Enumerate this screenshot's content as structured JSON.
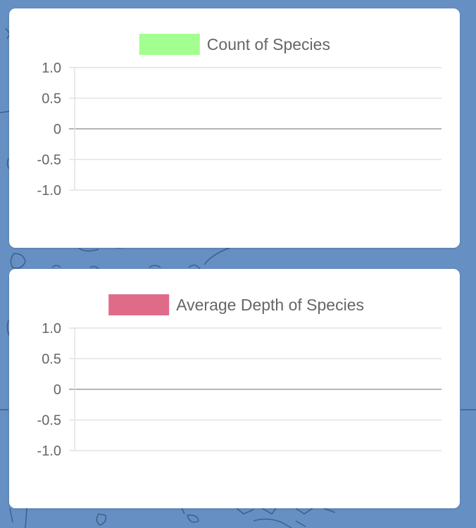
{
  "charts": {
    "count": {
      "legend_label": "Count of Species",
      "legend_color": "#a3ff8f"
    },
    "depth": {
      "legend_label": "Average Depth of Species",
      "legend_color": "#e06b89"
    }
  },
  "chart_data": [
    {
      "type": "bar",
      "series": [
        {
          "name": "Count of Species",
          "values": []
        }
      ],
      "categories": [],
      "yticks": [
        "1.0",
        "0.5",
        "0",
        "-0.5",
        "-1.0"
      ],
      "ylim": [
        -1.0,
        1.0
      ],
      "grid": true,
      "legend_position": "top"
    },
    {
      "type": "bar",
      "series": [
        {
          "name": "Average Depth of Species",
          "values": []
        }
      ],
      "categories": [],
      "yticks": [
        "1.0",
        "0.5",
        "0",
        "-0.5",
        "-1.0"
      ],
      "ylim": [
        -1.0,
        1.0
      ],
      "grid": true,
      "legend_position": "top"
    }
  ]
}
